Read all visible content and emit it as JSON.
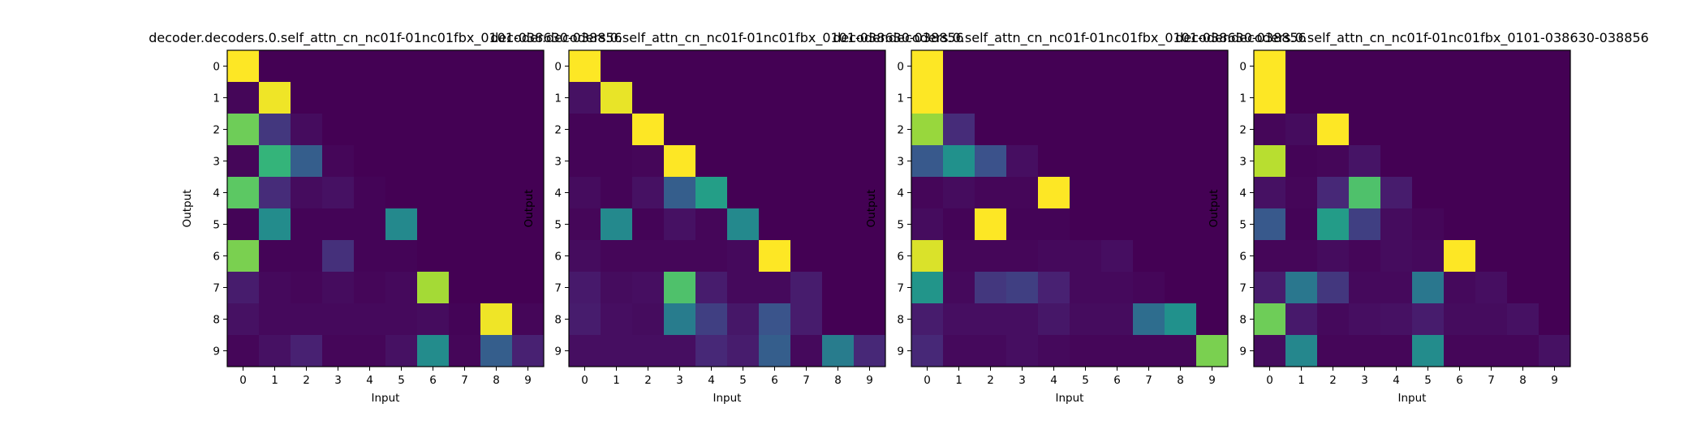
{
  "chart_data": [
    {
      "type": "heatmap",
      "title": "decoder.decoders.0.self_attn_cn_nc01f-01nc01fbx_0101-038630-038856",
      "xlabel": "Input",
      "ylabel": "Output",
      "x_ticks": [
        "0",
        "1",
        "2",
        "3",
        "4",
        "5",
        "6",
        "7",
        "8",
        "9"
      ],
      "y_ticks": [
        "0",
        "1",
        "2",
        "3",
        "4",
        "5",
        "6",
        "7",
        "8",
        "9"
      ],
      "colormap": "viridis",
      "grid": false,
      "values": [
        [
          1.0,
          0.0,
          0.0,
          0.0,
          0.0,
          0.0,
          0.0,
          0.0,
          0.0,
          0.0
        ],
        [
          0.02,
          0.98,
          0.0,
          0.0,
          0.0,
          0.0,
          0.0,
          0.0,
          0.0,
          0.0
        ],
        [
          0.78,
          0.18,
          0.04,
          0.0,
          0.0,
          0.0,
          0.0,
          0.0,
          0.0,
          0.0
        ],
        [
          0.02,
          0.66,
          0.3,
          0.02,
          0.0,
          0.0,
          0.0,
          0.0,
          0.0,
          0.0
        ],
        [
          0.75,
          0.15,
          0.04,
          0.06,
          0.01,
          0.0,
          0.0,
          0.0,
          0.0,
          0.0
        ],
        [
          0.01,
          0.48,
          0.01,
          0.01,
          0.01,
          0.47,
          0.0,
          0.0,
          0.0,
          0.0
        ],
        [
          0.8,
          0.01,
          0.01,
          0.16,
          0.01,
          0.01,
          0.0,
          0.0,
          0.0,
          0.0
        ],
        [
          0.1,
          0.03,
          0.02,
          0.04,
          0.02,
          0.03,
          0.87,
          0.0,
          0.0,
          0.0
        ],
        [
          0.06,
          0.03,
          0.03,
          0.03,
          0.03,
          0.03,
          0.04,
          0.01,
          0.98,
          0.02
        ],
        [
          0.02,
          0.06,
          0.12,
          0.02,
          0.02,
          0.06,
          0.48,
          0.02,
          0.3,
          0.12
        ]
      ]
    },
    {
      "type": "heatmap",
      "title": "decoder.decoders.0.self_attn_cn_nc01f-01nc01fbx_0101-038630-038856",
      "xlabel": "Input",
      "ylabel": "Output",
      "x_ticks": [
        "0",
        "1",
        "2",
        "3",
        "4",
        "5",
        "6",
        "7",
        "8",
        "9"
      ],
      "y_ticks": [
        "0",
        "1",
        "2",
        "3",
        "4",
        "5",
        "6",
        "7",
        "8",
        "9"
      ],
      "colormap": "viridis",
      "grid": false,
      "values": [
        [
          1.0,
          0.0,
          0.0,
          0.0,
          0.0,
          0.0,
          0.0,
          0.0,
          0.0,
          0.0
        ],
        [
          0.06,
          0.97,
          0.0,
          0.0,
          0.0,
          0.0,
          0.0,
          0.0,
          0.0,
          0.0
        ],
        [
          0.01,
          0.01,
          1.0,
          0.0,
          0.0,
          0.0,
          0.0,
          0.0,
          0.0,
          0.0
        ],
        [
          0.01,
          0.01,
          0.02,
          1.0,
          0.0,
          0.0,
          0.0,
          0.0,
          0.0,
          0.0
        ],
        [
          0.04,
          0.01,
          0.06,
          0.3,
          0.56,
          0.0,
          0.0,
          0.0,
          0.0,
          0.0
        ],
        [
          0.02,
          0.47,
          0.01,
          0.06,
          0.02,
          0.47,
          0.0,
          0.0,
          0.0,
          0.0
        ],
        [
          0.04,
          0.02,
          0.02,
          0.02,
          0.02,
          0.03,
          1.0,
          0.0,
          0.0,
          0.0
        ],
        [
          0.09,
          0.04,
          0.05,
          0.72,
          0.1,
          0.03,
          0.03,
          0.1,
          0.0,
          0.0
        ],
        [
          0.1,
          0.05,
          0.04,
          0.42,
          0.2,
          0.08,
          0.26,
          0.1,
          0.0,
          0.0
        ],
        [
          0.05,
          0.05,
          0.05,
          0.05,
          0.14,
          0.1,
          0.3,
          0.03,
          0.42,
          0.14
        ]
      ]
    },
    {
      "type": "heatmap",
      "title": "decoder.decoders.0.self_attn_cn_nc01f-01nc01fbx_0101-038630-038856",
      "xlabel": "Input",
      "ylabel": "Output",
      "x_ticks": [
        "0",
        "1",
        "2",
        "3",
        "4",
        "5",
        "6",
        "7",
        "8",
        "9"
      ],
      "y_ticks": [
        "0",
        "1",
        "2",
        "3",
        "4",
        "5",
        "6",
        "7",
        "8",
        "9"
      ],
      "colormap": "viridis",
      "grid": false,
      "values": [
        [
          1.0,
          0.0,
          0.0,
          0.0,
          0.0,
          0.0,
          0.0,
          0.0,
          0.0,
          0.0
        ],
        [
          1.0,
          0.0,
          0.0,
          0.0,
          0.0,
          0.0,
          0.0,
          0.0,
          0.0,
          0.0
        ],
        [
          0.85,
          0.15,
          0.0,
          0.0,
          0.0,
          0.0,
          0.0,
          0.0,
          0.0,
          0.0
        ],
        [
          0.28,
          0.5,
          0.25,
          0.05,
          0.0,
          0.0,
          0.0,
          0.0,
          0.0,
          0.0
        ],
        [
          0.02,
          0.04,
          0.02,
          0.02,
          1.0,
          0.0,
          0.0,
          0.0,
          0.0,
          0.0
        ],
        [
          0.04,
          0.01,
          1.0,
          0.01,
          0.01,
          0.0,
          0.0,
          0.0,
          0.0,
          0.0
        ],
        [
          0.95,
          0.02,
          0.02,
          0.02,
          0.03,
          0.03,
          0.05,
          0.0,
          0.0,
          0.0
        ],
        [
          0.52,
          0.03,
          0.18,
          0.2,
          0.12,
          0.03,
          0.03,
          0.02,
          0.0,
          0.0
        ],
        [
          0.1,
          0.05,
          0.05,
          0.05,
          0.08,
          0.04,
          0.04,
          0.36,
          0.5,
          0.0
        ],
        [
          0.14,
          0.03,
          0.03,
          0.05,
          0.03,
          0.02,
          0.02,
          0.02,
          0.02,
          0.8
        ]
      ]
    },
    {
      "type": "heatmap",
      "title": "decoder.decoders.0.self_attn_cn_nc01f-01nc01fbx_0101-038630-038856",
      "xlabel": "Input",
      "ylabel": "Output",
      "x_ticks": [
        "0",
        "1",
        "2",
        "3",
        "4",
        "5",
        "6",
        "7",
        "8",
        "9"
      ],
      "y_ticks": [
        "0",
        "1",
        "2",
        "3",
        "4",
        "5",
        "6",
        "7",
        "8",
        "9"
      ],
      "colormap": "viridis",
      "grid": false,
      "values": [
        [
          1.0,
          0.0,
          0.0,
          0.0,
          0.0,
          0.0,
          0.0,
          0.0,
          0.0,
          0.0
        ],
        [
          1.0,
          0.0,
          0.0,
          0.0,
          0.0,
          0.0,
          0.0,
          0.0,
          0.0,
          0.0
        ],
        [
          0.02,
          0.04,
          1.0,
          0.0,
          0.0,
          0.0,
          0.0,
          0.0,
          0.0,
          0.0
        ],
        [
          0.9,
          0.01,
          0.02,
          0.07,
          0.0,
          0.0,
          0.0,
          0.0,
          0.0,
          0.0
        ],
        [
          0.06,
          0.02,
          0.14,
          0.72,
          0.1,
          0.0,
          0.0,
          0.0,
          0.0,
          0.0
        ],
        [
          0.28,
          0.01,
          0.55,
          0.2,
          0.04,
          0.02,
          0.0,
          0.0,
          0.0,
          0.0
        ],
        [
          0.02,
          0.02,
          0.04,
          0.02,
          0.04,
          0.03,
          1.0,
          0.0,
          0.0,
          0.0
        ],
        [
          0.1,
          0.4,
          0.18,
          0.03,
          0.03,
          0.4,
          0.03,
          0.05,
          0.0,
          0.0
        ],
        [
          0.78,
          0.09,
          0.03,
          0.05,
          0.06,
          0.1,
          0.04,
          0.04,
          0.06,
          0.0
        ],
        [
          0.04,
          0.46,
          0.02,
          0.02,
          0.02,
          0.48,
          0.02,
          0.02,
          0.02,
          0.06
        ]
      ]
    }
  ]
}
